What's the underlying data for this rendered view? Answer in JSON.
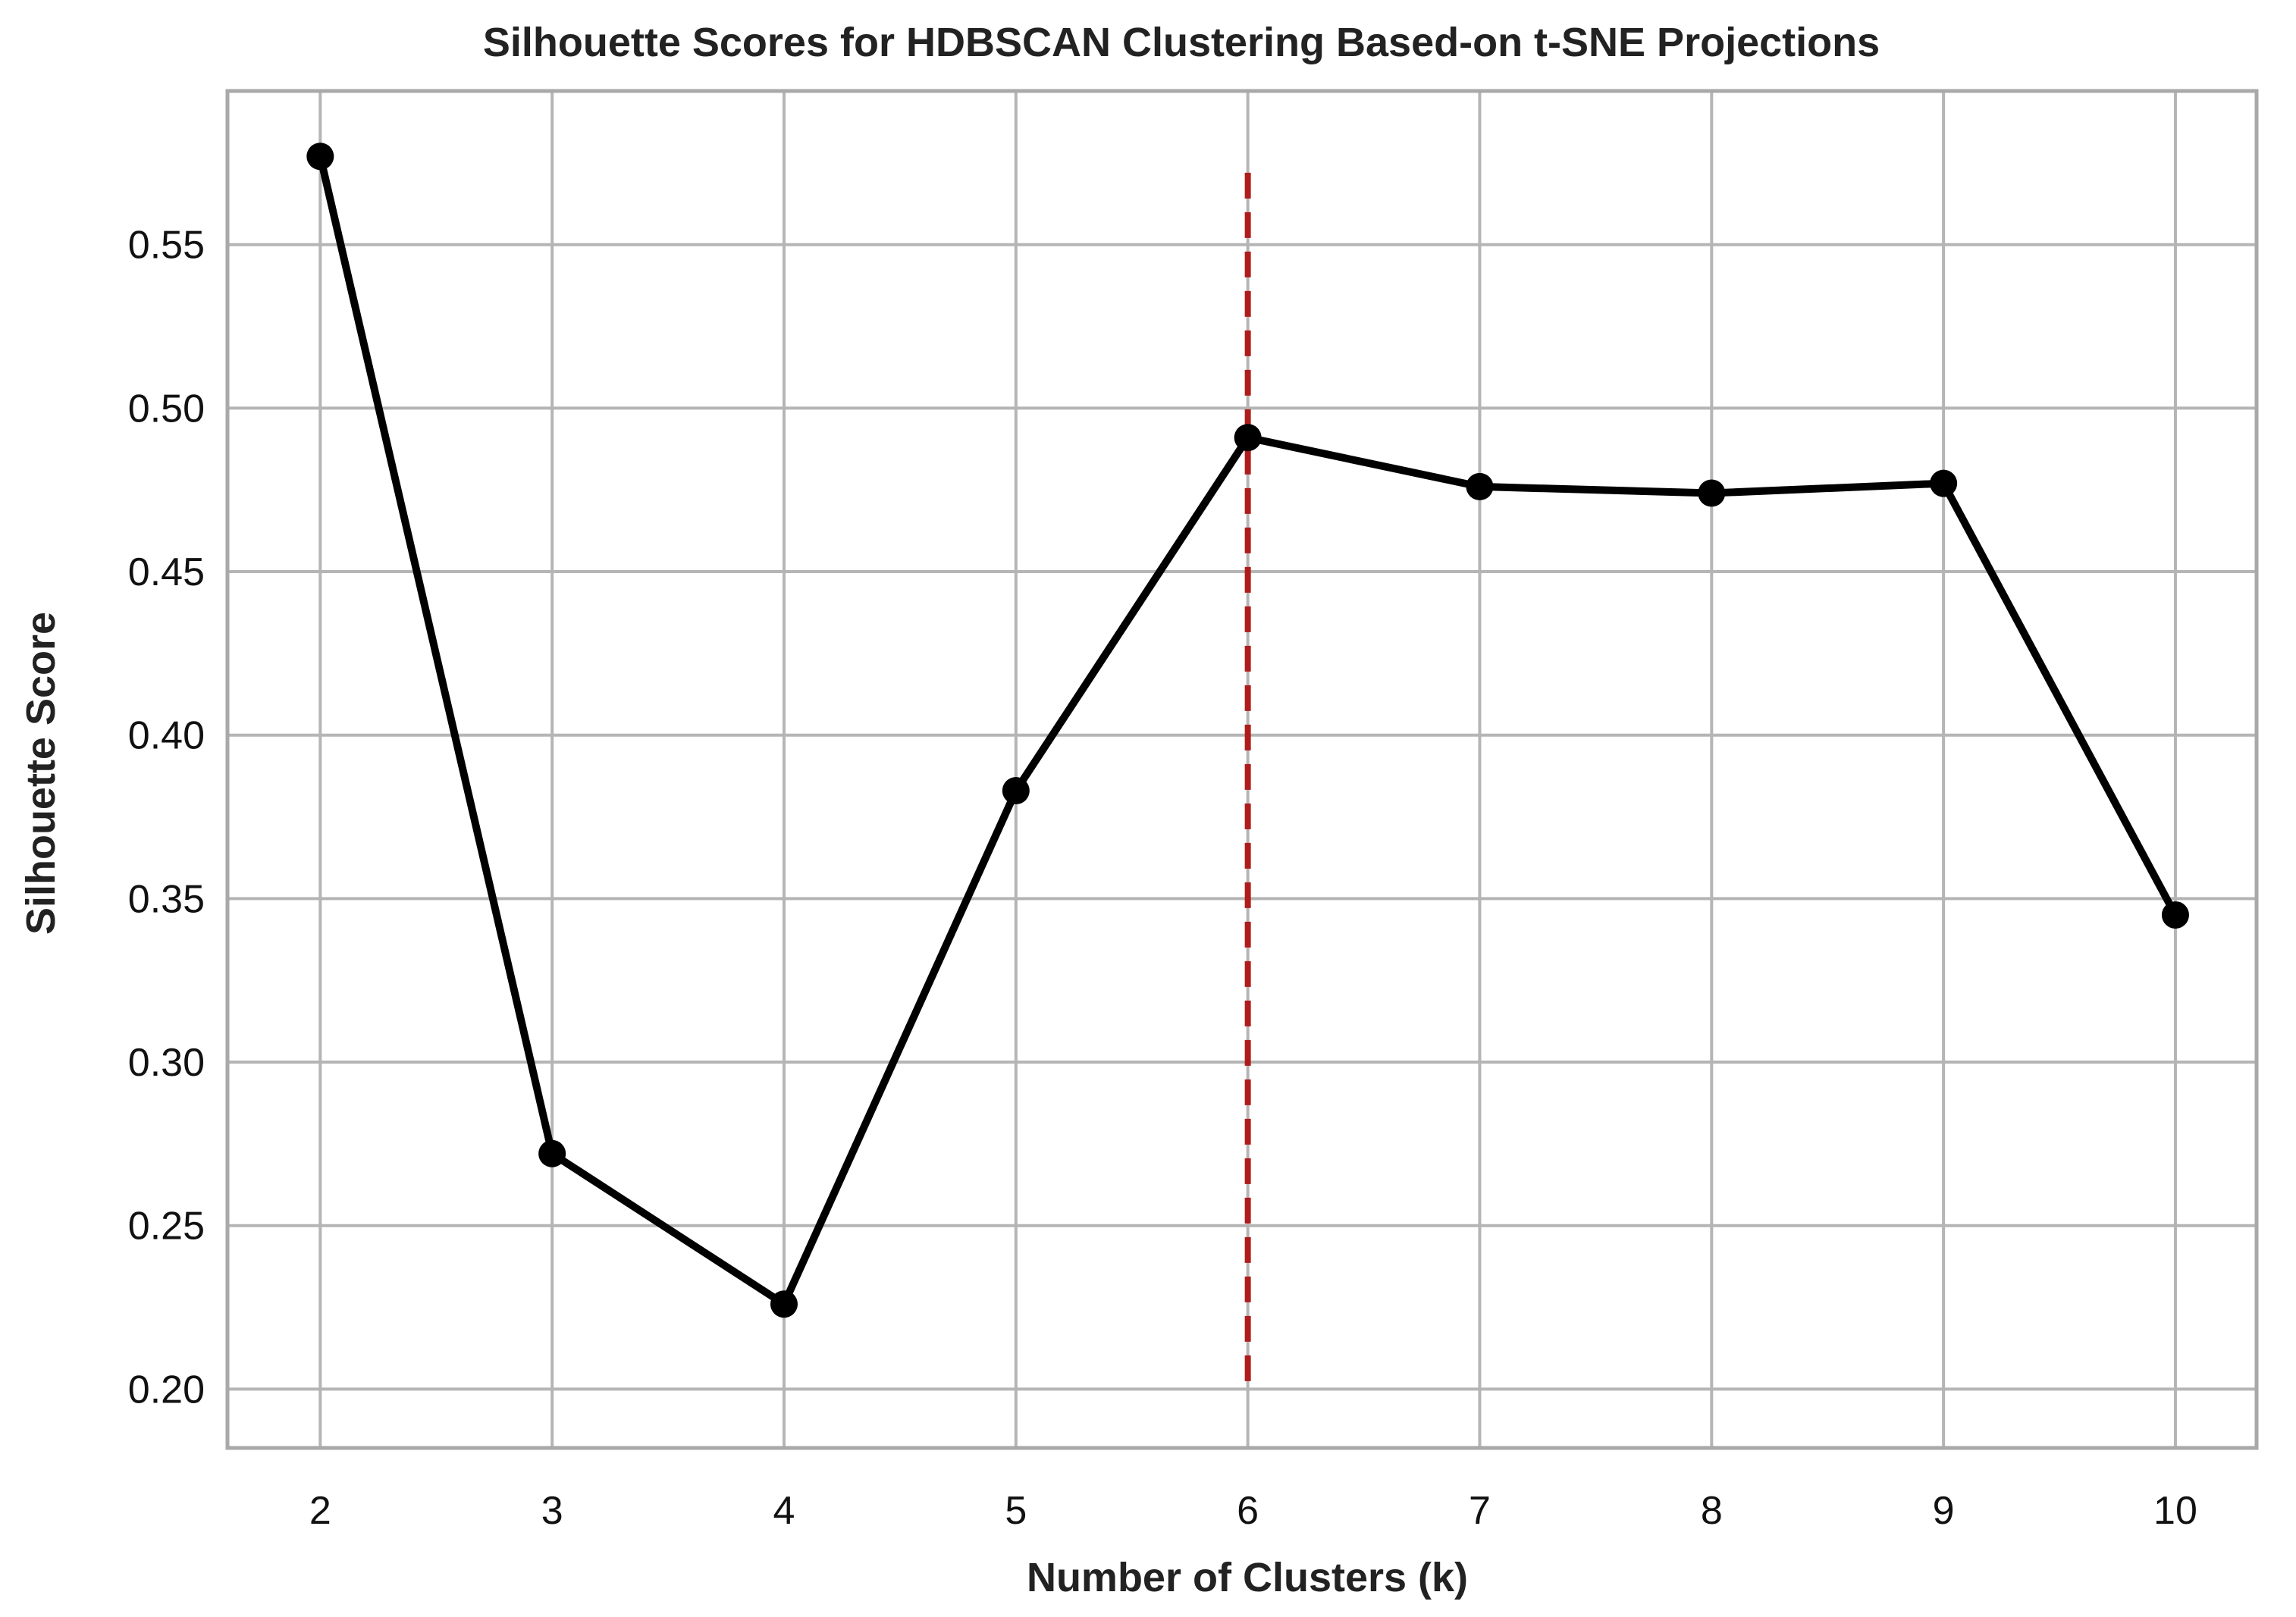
{
  "chart_data": {
    "type": "line",
    "title": "Silhouette Scores for HDBSCAN Clustering Based-on t-SNE Projections",
    "xlabel": "Number of Clusters (k)",
    "ylabel": "Silhouette Score",
    "x": [
      2,
      3,
      4,
      5,
      6,
      7,
      8,
      9,
      10
    ],
    "x_ticks": [
      "2",
      "3",
      "4",
      "5",
      "6",
      "7",
      "8",
      "9",
      "10"
    ],
    "y_ticks": [
      "0.20",
      "0.25",
      "0.30",
      "0.35",
      "0.40",
      "0.45",
      "0.50",
      "0.55"
    ],
    "y_tick_values": [
      0.2,
      0.25,
      0.3,
      0.35,
      0.4,
      0.45,
      0.5,
      0.55
    ],
    "xlim": [
      1.6,
      10.35
    ],
    "ylim": [
      0.182,
      0.597
    ],
    "grid": true,
    "series": [
      {
        "values": [
          0.577,
          0.272,
          0.226,
          0.383,
          0.491,
          0.476,
          0.474,
          0.477,
          0.345
        ],
        "color": "#000000",
        "marker": "circle"
      }
    ],
    "reference_line": {
      "orientation": "vertical",
      "x": 6,
      "y_range": [
        0.2,
        0.572
      ],
      "style": "dashed",
      "color": "#b01c1c"
    }
  }
}
